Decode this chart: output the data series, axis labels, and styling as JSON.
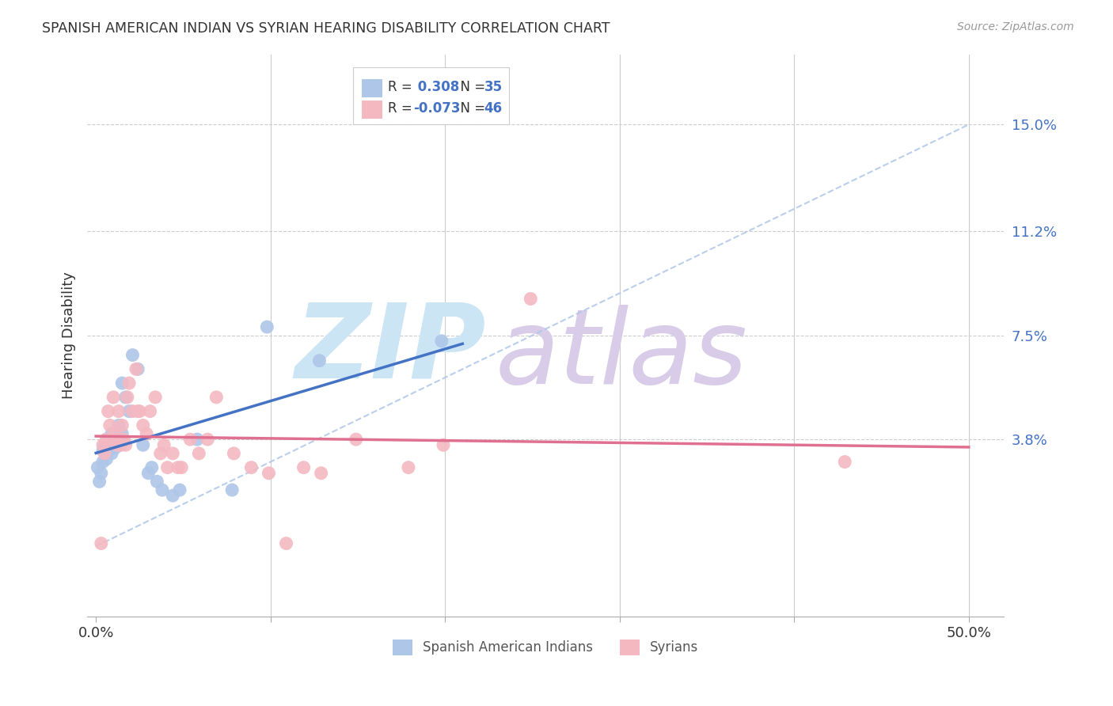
{
  "title": "SPANISH AMERICAN INDIAN VS SYRIAN HEARING DISABILITY CORRELATION CHART",
  "source": "Source: ZipAtlas.com",
  "ylabel": "Hearing Disability",
  "xlim": [
    -0.005,
    0.52
  ],
  "ylim": [
    -0.025,
    0.175
  ],
  "ytick_vals": [
    0.0,
    0.038,
    0.075,
    0.112,
    0.15
  ],
  "ytick_labels": [
    "",
    "3.8%",
    "7.5%",
    "11.2%",
    "15.0%"
  ],
  "xtick_vals": [
    0.0,
    0.1,
    0.2,
    0.3,
    0.4,
    0.5
  ],
  "xtick_labels": [
    "0.0%",
    "",
    "",
    "",
    "",
    "50.0%"
  ],
  "scatter_blue_color": "#aec6e8",
  "scatter_pink_color": "#f4b8c1",
  "trend_blue_color": "#4472c4",
  "trend_pink_color": "#e07090",
  "diag_color": "#aec6e8",
  "text_dark": "#333333",
  "text_blue": "#4472c4",
  "text_gray": "#999999",
  "grid_color": "#cccccc",
  "background": "#ffffff",
  "R_blue": "0.308",
  "N_blue": "35",
  "R_pink": "-0.073",
  "N_pink": "46",
  "legend_label_blue": "Spanish American Indians",
  "legend_label_pink": "Syrians",
  "blue_x": [
    0.001,
    0.002,
    0.003,
    0.004,
    0.004,
    0.005,
    0.006,
    0.006,
    0.007,
    0.008,
    0.009,
    0.009,
    0.01,
    0.011,
    0.012,
    0.013,
    0.014,
    0.015,
    0.015,
    0.017,
    0.019,
    0.021,
    0.024,
    0.027,
    0.03,
    0.032,
    0.035,
    0.038,
    0.044,
    0.048,
    0.058,
    0.078,
    0.098,
    0.128,
    0.198
  ],
  "blue_y": [
    0.028,
    0.023,
    0.026,
    0.034,
    0.03,
    0.036,
    0.038,
    0.031,
    0.034,
    0.037,
    0.033,
    0.04,
    0.036,
    0.035,
    0.038,
    0.043,
    0.036,
    0.04,
    0.058,
    0.053,
    0.048,
    0.068,
    0.063,
    0.036,
    0.026,
    0.028,
    0.023,
    0.02,
    0.018,
    0.02,
    0.038,
    0.02,
    0.078,
    0.066,
    0.073
  ],
  "pink_x": [
    0.003,
    0.004,
    0.005,
    0.006,
    0.007,
    0.008,
    0.009,
    0.01,
    0.011,
    0.012,
    0.013,
    0.014,
    0.015,
    0.016,
    0.017,
    0.018,
    0.019,
    0.021,
    0.023,
    0.024,
    0.025,
    0.027,
    0.029,
    0.031,
    0.034,
    0.037,
    0.039,
    0.041,
    0.044,
    0.047,
    0.049,
    0.054,
    0.059,
    0.064,
    0.069,
    0.079,
    0.089,
    0.099,
    0.109,
    0.119,
    0.129,
    0.149,
    0.179,
    0.199,
    0.249,
    0.429
  ],
  "pink_y": [
    0.001,
    0.036,
    0.033,
    0.038,
    0.048,
    0.043,
    0.038,
    0.053,
    0.04,
    0.036,
    0.048,
    0.036,
    0.043,
    0.038,
    0.036,
    0.053,
    0.058,
    0.048,
    0.063,
    0.048,
    0.048,
    0.043,
    0.04,
    0.048,
    0.053,
    0.033,
    0.036,
    0.028,
    0.033,
    0.028,
    0.028,
    0.038,
    0.033,
    0.038,
    0.053,
    0.033,
    0.028,
    0.026,
    0.001,
    0.028,
    0.026,
    0.038,
    0.028,
    0.036,
    0.088,
    0.03
  ]
}
